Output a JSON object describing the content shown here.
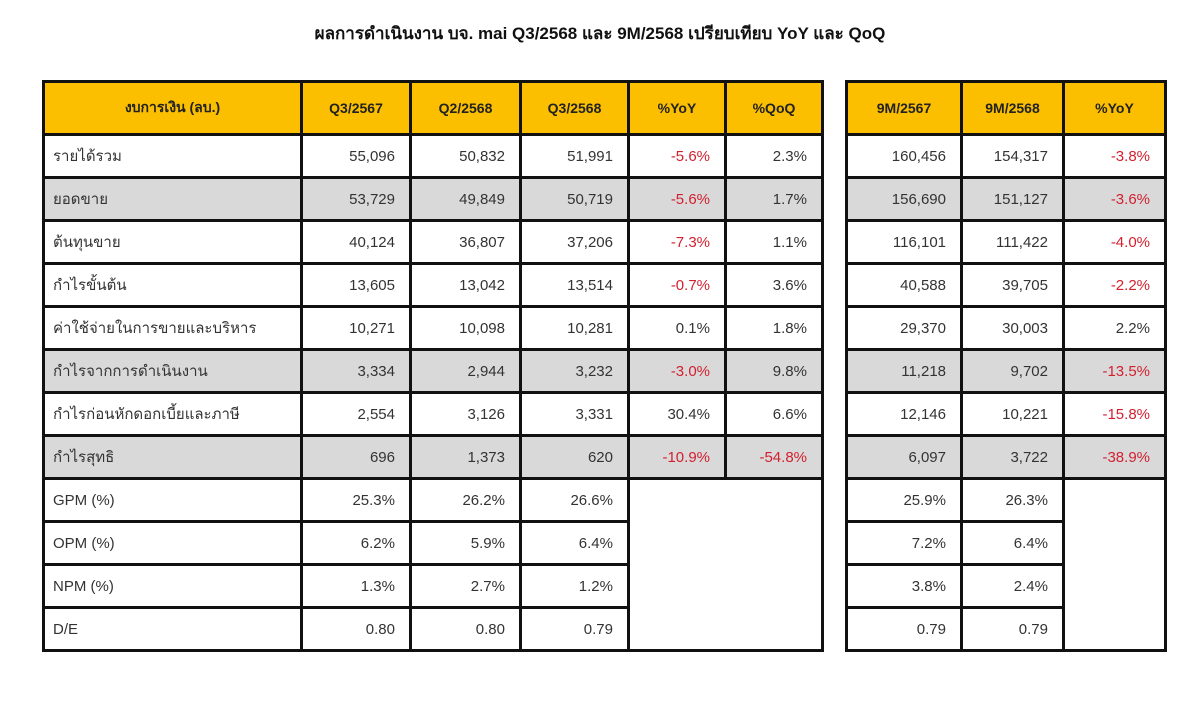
{
  "title": "ผลการดำเนินงาน บจ. mai Q3/2568 และ 9M/2568 เปรียบเทียบ YoY และ QoQ",
  "colors": {
    "header_bg": "#fbbf00",
    "highlight_row_bg": "#d9d9d9",
    "negative_text": "#d3202f"
  },
  "quarterly": {
    "headers": [
      "งบการเงิน (ลบ.)",
      "Q3/2567",
      "Q2/2568",
      "Q3/2568",
      "%YoY",
      "%QoQ"
    ],
    "rows": [
      {
        "label": "รายได้รวม",
        "highlight": false,
        "values": [
          "55,096",
          "50,832",
          "51,991",
          "-5.6%",
          "2.3%"
        ]
      },
      {
        "label": "ยอดขาย",
        "highlight": true,
        "values": [
          "53,729",
          "49,849",
          "50,719",
          "-5.6%",
          "1.7%"
        ]
      },
      {
        "label": "ต้นทุนขาย",
        "highlight": false,
        "values": [
          "40,124",
          "36,807",
          "37,206",
          "-7.3%",
          "1.1%"
        ]
      },
      {
        "label": "กำไรขั้นต้น",
        "highlight": false,
        "values": [
          "13,605",
          "13,042",
          "13,514",
          "-0.7%",
          "3.6%"
        ]
      },
      {
        "label": "ค่าใช้จ่ายในการขายและบริหาร",
        "highlight": false,
        "values": [
          "10,271",
          "10,098",
          "10,281",
          "0.1%",
          "1.8%"
        ]
      },
      {
        "label": "กำไรจากการดำเนินงาน",
        "highlight": true,
        "values": [
          "3,334",
          "2,944",
          "3,232",
          "-3.0%",
          "9.8%"
        ]
      },
      {
        "label": "กำไรก่อนหักดอกเบี้ยและภาษี",
        "highlight": false,
        "values": [
          "2,554",
          "3,126",
          "3,331",
          "30.4%",
          "6.6%"
        ]
      },
      {
        "label": "กำไรสุทธิ",
        "highlight": true,
        "values": [
          "696",
          "1,373",
          "620",
          "-10.9%",
          "-54.8%"
        ]
      },
      {
        "label": "GPM (%)",
        "highlight": false,
        "values": [
          "25.3%",
          "26.2%",
          "26.6%"
        ]
      },
      {
        "label": "OPM (%)",
        "highlight": false,
        "values": [
          "6.2%",
          "5.9%",
          "6.4%"
        ]
      },
      {
        "label": "NPM (%)",
        "highlight": false,
        "values": [
          "1.3%",
          "2.7%",
          "1.2%"
        ]
      },
      {
        "label": "D/E",
        "highlight": false,
        "values": [
          "0.80",
          "0.80",
          "0.79"
        ]
      }
    ]
  },
  "nine_month": {
    "headers": [
      "9M/2567",
      "9M/2568",
      "%YoY"
    ],
    "rows": [
      {
        "highlight": false,
        "values": [
          "160,456",
          "154,317",
          "-3.8%"
        ]
      },
      {
        "highlight": true,
        "values": [
          "156,690",
          "151,127",
          "-3.6%"
        ]
      },
      {
        "highlight": false,
        "values": [
          "116,101",
          "111,422",
          "-4.0%"
        ]
      },
      {
        "highlight": false,
        "values": [
          "40,588",
          "39,705",
          "-2.2%"
        ]
      },
      {
        "highlight": false,
        "values": [
          "29,370",
          "30,003",
          "2.2%"
        ]
      },
      {
        "highlight": true,
        "values": [
          "11,218",
          "9,702",
          "-13.5%"
        ]
      },
      {
        "highlight": false,
        "values": [
          "12,146",
          "10,221",
          "-15.8%"
        ]
      },
      {
        "highlight": true,
        "values": [
          "6,097",
          "3,722",
          "-38.9%"
        ]
      },
      {
        "highlight": false,
        "values": [
          "25.9%",
          "26.3%"
        ]
      },
      {
        "highlight": false,
        "values": [
          "7.2%",
          "6.4%"
        ]
      },
      {
        "highlight": false,
        "values": [
          "3.8%",
          "2.4%"
        ]
      },
      {
        "highlight": false,
        "values": [
          "0.79",
          "0.79"
        ]
      }
    ]
  }
}
